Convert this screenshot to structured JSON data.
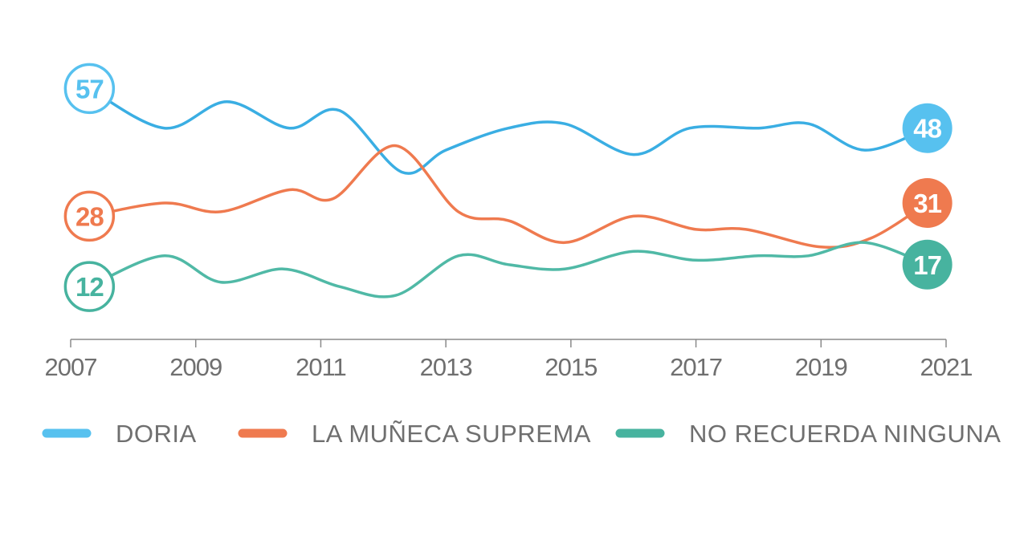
{
  "chart_data": {
    "type": "line",
    "title": "",
    "xlabel": "",
    "ylabel": "",
    "xlim": [
      2007,
      2021
    ],
    "ylim": [
      0,
      68
    ],
    "x_ticks": [
      "2007",
      "2009",
      "2011",
      "2013",
      "2015",
      "2017",
      "2019",
      "2021"
    ],
    "legend_position": "bottom",
    "series": [
      {
        "name": "DORIA",
        "color": "#3aaee3",
        "badge_fill": "#57c1ef",
        "start_label": "57",
        "end_label": "48",
        "x": [
          2007.3,
          2008.5,
          2009.5,
          2010.5,
          2011.3,
          2012.3,
          2013.0,
          2014.0,
          2014.9,
          2016.0,
          2016.9,
          2018.0,
          2018.8,
          2019.7,
          2020.7
        ],
        "y": [
          57,
          48,
          54,
          48,
          52,
          38,
          43,
          48,
          49,
          42,
          48,
          48,
          49,
          43,
          48
        ]
      },
      {
        "name": "LA MUÑECA SUPREMA",
        "color": "#ef7a4f",
        "badge_fill": "#ef7a4f",
        "start_label": "28",
        "end_label": "31",
        "x": [
          2007.3,
          2008.5,
          2009.4,
          2010.5,
          2011.2,
          2012.2,
          2013.2,
          2014.0,
          2014.9,
          2016.0,
          2017.0,
          2017.8,
          2019.0,
          2019.8,
          2020.7
        ],
        "y": [
          28,
          31,
          29,
          34,
          32,
          44,
          29,
          27,
          22,
          28,
          25,
          25,
          21,
          23,
          31
        ]
      },
      {
        "name": "NO RECUERDA NINGUNA",
        "color": "#50b9a6",
        "badge_fill": "#47b39f",
        "start_label": "12",
        "end_label": "17",
        "x": [
          2007.3,
          2008.5,
          2009.4,
          2010.4,
          2011.3,
          2012.2,
          2013.2,
          2014.0,
          2014.9,
          2016.0,
          2017.0,
          2018.0,
          2018.8,
          2019.7,
          2020.7
        ],
        "y": [
          12,
          19,
          13,
          16,
          12,
          10,
          19,
          17,
          16,
          20,
          18,
          19,
          19,
          22,
          17
        ]
      }
    ]
  }
}
